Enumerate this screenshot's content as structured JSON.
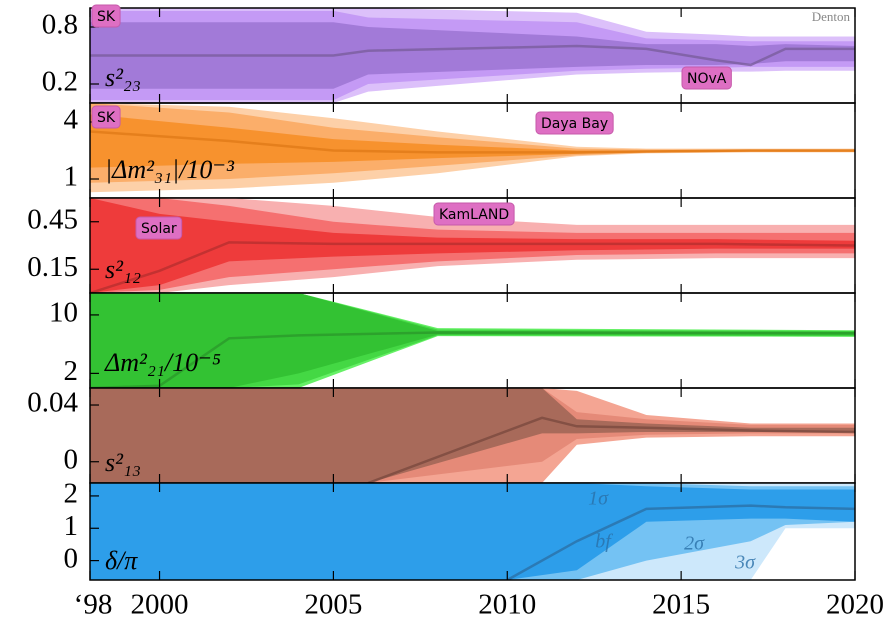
{
  "chart_data": [
    {
      "type": "area",
      "label": "s²₂₃",
      "x": [
        1998,
        2005,
        2006,
        2012,
        2014,
        2016,
        2017,
        2018,
        2020
      ],
      "ylim": [
        0,
        1
      ],
      "yticks": [
        0.2,
        0.8
      ],
      "series": [
        {
          "color": "#dcc0fa",
          "low": [
            0,
            0,
            0.12,
            0.3,
            0.32,
            0.33,
            0.33,
            0.34,
            0.34
          ],
          "high": [
            1,
            1,
            1,
            0.95,
            0.75,
            0.72,
            0.7,
            0.7,
            0.7
          ]
        },
        {
          "color": "#c49af5",
          "low": [
            0.03,
            0.03,
            0.2,
            0.34,
            0.36,
            0.37,
            0.38,
            0.38,
            0.38
          ],
          "high": [
            0.97,
            0.97,
            0.9,
            0.85,
            0.68,
            0.66,
            0.65,
            0.65,
            0.65
          ]
        },
        {
          "color": "#a27ad8",
          "low": [
            0.15,
            0.15,
            0.3,
            0.38,
            0.4,
            0.4,
            0.41,
            0.44,
            0.44
          ],
          "high": [
            0.85,
            0.85,
            0.8,
            0.7,
            0.62,
            0.62,
            0.6,
            0.62,
            0.6
          ]
        },
        {
          "color": "#7a5e9e",
          "values": [
            0.5,
            0.5,
            0.55,
            0.6,
            0.57,
            0.45,
            0.4,
            0.57,
            0.57
          ]
        }
      ],
      "annotations": [
        "SK",
        "Denton",
        "NOvA"
      ]
    },
    {
      "type": "area",
      "label": "|Δm²₃₁|/10⁻³",
      "x": [
        1998,
        2002,
        2005,
        2008,
        2012,
        2014,
        2017,
        2018,
        2020
      ],
      "ylim": [
        0,
        5
      ],
      "yticks": [
        1,
        4
      ],
      "series": [
        {
          "color": "#fdd0a8",
          "low": [
            0.3,
            0.5,
            0.8,
            1.3,
            2.2,
            2.35,
            2.4,
            2.4,
            2.4
          ],
          "high": [
            5,
            4.8,
            4.2,
            3.5,
            2.7,
            2.6,
            2.6,
            2.6,
            2.6
          ]
        },
        {
          "color": "#fbae6a",
          "low": [
            0.8,
            1,
            1.3,
            1.7,
            2.25,
            2.38,
            2.42,
            2.42,
            2.42
          ],
          "high": [
            5,
            4.5,
            3.7,
            3.2,
            2.6,
            2.55,
            2.55,
            2.56,
            2.56
          ]
        },
        {
          "color": "#f7922e",
          "low": [
            1.6,
            1.8,
            1.9,
            2.1,
            2.32,
            2.4,
            2.45,
            2.44,
            2.44
          ],
          "high": [
            4.4,
            3.7,
            3.1,
            2.8,
            2.5,
            2.5,
            2.52,
            2.52,
            2.5
          ]
        },
        {
          "color": "#e07a18",
          "values": [
            3.5,
            3.0,
            2.5,
            2.4,
            2.4,
            2.45,
            2.5,
            2.5,
            2.5
          ]
        }
      ],
      "annotations": [
        "SK",
        "Daya Bay"
      ]
    },
    {
      "type": "area",
      "label": "s²₁₂",
      "x": [
        1998,
        2000,
        2002,
        2005,
        2008,
        2012,
        2016,
        2020
      ],
      "ylim": [
        0,
        0.6
      ],
      "yticks": [
        0.15,
        0.45
      ],
      "series": [
        {
          "color": "#f8b0b0",
          "low": [
            0,
            0,
            0.05,
            0.1,
            0.17,
            0.21,
            0.22,
            0.22
          ],
          "high": [
            0.6,
            0.6,
            0.6,
            0.55,
            0.48,
            0.43,
            0.43,
            0.43
          ]
        },
        {
          "color": "#f57070",
          "low": [
            0,
            0.02,
            0.1,
            0.15,
            0.2,
            0.24,
            0.25,
            0.25
          ],
          "high": [
            0.6,
            0.6,
            0.55,
            0.45,
            0.4,
            0.38,
            0.38,
            0.38
          ]
        },
        {
          "color": "#ee3b3b",
          "low": [
            0,
            0.05,
            0.2,
            0.23,
            0.25,
            0.27,
            0.28,
            0.28
          ],
          "high": [
            0.6,
            0.5,
            0.45,
            0.38,
            0.35,
            0.34,
            0.34,
            0.33
          ]
        },
        {
          "color": "#b83030",
          "values": [
            0.0,
            0.14,
            0.32,
            0.31,
            0.31,
            0.31,
            0.31,
            0.3
          ]
        }
      ],
      "annotations": [
        "Solar",
        "KamLAND"
      ]
    },
    {
      "type": "area",
      "label": "Δm²₂₁/10⁻⁵",
      "x": [
        1998,
        2000,
        2002,
        2004,
        2008,
        2020
      ],
      "ylim": [
        0,
        13
      ],
      "yticks": [
        2,
        10
      ],
      "series": [
        {
          "color": "#66f066",
          "low": [
            0,
            0,
            0,
            0,
            7.1,
            7.0
          ],
          "high": [
            13,
            13,
            13,
            13,
            8.2,
            7.9
          ]
        },
        {
          "color": "#44d844",
          "low": [
            0,
            0,
            0,
            0.5,
            7.2,
            7.1
          ],
          "high": [
            13,
            13,
            13,
            13,
            8.0,
            7.8
          ]
        },
        {
          "color": "#33c233",
          "low": [
            0,
            0,
            0,
            2,
            7.3,
            7.2
          ],
          "high": [
            13,
            13,
            13,
            13,
            7.8,
            7.7
          ]
        },
        {
          "color": "#2a9a2a",
          "values": [
            0,
            0.3,
            6.8,
            7.2,
            7.6,
            7.5
          ]
        }
      ],
      "annotations": []
    },
    {
      "type": "area",
      "label": "s²₁₃",
      "x": [
        1998,
        2006,
        2011,
        2012,
        2014,
        2017,
        2020
      ],
      "ylim": [
        -0.015,
        0.052
      ],
      "yticks": [
        0,
        0.04
      ],
      "series": [
        {
          "color": "#f4a593",
          "low": [
            -0.015,
            -0.015,
            -0.015,
            0.012,
            0.017,
            0.018,
            0.018
          ],
          "high": [
            0.052,
            0.052,
            0.052,
            0.05,
            0.033,
            0.027,
            0.027
          ]
        },
        {
          "color": "#e58a78",
          "low": [
            -0.015,
            -0.015,
            0.0,
            0.016,
            0.019,
            0.02,
            0.02
          ],
          "high": [
            0.052,
            0.052,
            0.052,
            0.035,
            0.03,
            0.026,
            0.026
          ]
        },
        {
          "color": "#a86a5a",
          "low": [
            -0.015,
            -0.015,
            0.02,
            0.02,
            0.021,
            0.021,
            0.021
          ],
          "high": [
            0.052,
            0.052,
            0.052,
            0.03,
            0.027,
            0.024,
            0.024
          ]
        },
        {
          "color": "#7a4a3e",
          "values": [
            null,
            -0.015,
            0.031,
            0.025,
            0.024,
            0.022,
            0.021
          ]
        }
      ],
      "annotations": []
    },
    {
      "type": "area",
      "label": "δ/π",
      "x": [
        1998,
        2010,
        2012,
        2014,
        2017,
        2018,
        2020
      ],
      "ylim": [
        -0.6,
        2.4
      ],
      "yticks": [
        0,
        1,
        2
      ],
      "xlim": [
        1998,
        2020
      ],
      "xticks": [
        {
          "value": 1998,
          "label": "‘98"
        },
        2000,
        2005,
        2010,
        2015,
        2020
      ],
      "series": [
        {
          "color": "#cde8fb",
          "low": [
            -0.6,
            -0.6,
            -0.6,
            -0.6,
            -0.6,
            1.0,
            1.0
          ],
          "high": [
            2.4,
            2.4,
            2.4,
            2.4,
            2.4,
            2.4,
            2.4
          ]
        },
        {
          "color": "#74c2f3",
          "low": [
            -0.6,
            -0.6,
            -0.6,
            0.0,
            0.6,
            1.1,
            1.2
          ],
          "high": [
            2.4,
            2.4,
            2.4,
            2.4,
            2.3,
            2.3,
            2.3
          ]
        },
        {
          "color": "#2d9eea",
          "low": [
            -0.6,
            -0.6,
            -0.3,
            1.2,
            1.3,
            1.3,
            1.2
          ],
          "high": [
            2.4,
            2.4,
            2.4,
            2.3,
            2.2,
            2.2,
            2.2
          ]
        },
        {
          "color": "#2a70a8",
          "values": [
            null,
            -0.6,
            0.6,
            1.6,
            1.7,
            1.65,
            1.6
          ]
        }
      ],
      "annotations": [
        "1σ",
        "bf",
        "2σ",
        "3σ"
      ]
    }
  ]
}
